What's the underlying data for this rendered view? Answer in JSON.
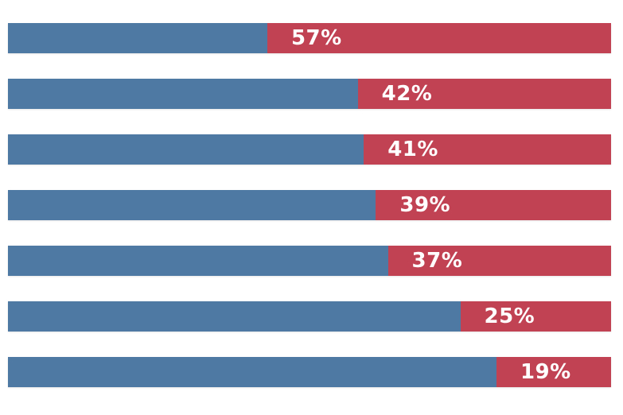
{
  "background_color": "#ffffff",
  "chart_data": {
    "type": "bar",
    "orientation": "horizontal",
    "stacked": true,
    "percent_stacked": true,
    "title": "",
    "xlabel": "",
    "ylabel": "",
    "xlim": [
      0,
      100
    ],
    "grid": false,
    "legend_position": "none",
    "series_colors": {
      "left_segment": "#4d79a2",
      "right_segment": "#c04253"
    },
    "label_color": "#ffffff",
    "bars": [
      {
        "left_value": 43,
        "right_value": 57,
        "label": "57%"
      },
      {
        "left_value": 58,
        "right_value": 42,
        "label": "42%"
      },
      {
        "left_value": 59,
        "right_value": 41,
        "label": "41%"
      },
      {
        "left_value": 61,
        "right_value": 39,
        "label": "39%"
      },
      {
        "left_value": 63,
        "right_value": 37,
        "label": "37%"
      },
      {
        "left_value": 75,
        "right_value": 25,
        "label": "25%"
      },
      {
        "left_value": 81,
        "right_value": 19,
        "label": "19%"
      }
    ]
  }
}
